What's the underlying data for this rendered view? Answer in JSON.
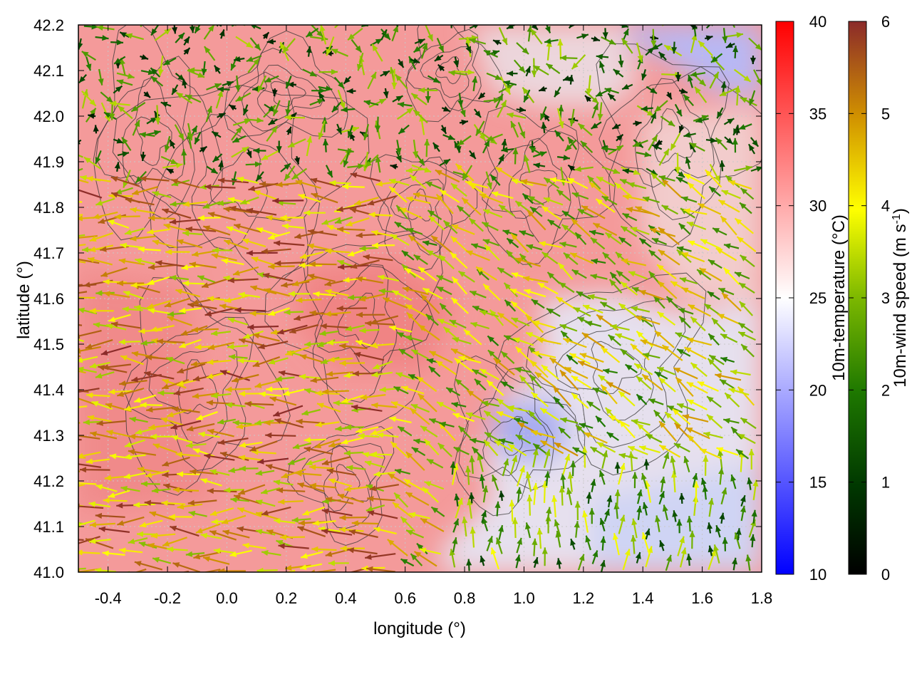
{
  "chart_data": {
    "type": "heatmap",
    "title": "",
    "xlabel": "longitude (°)",
    "ylabel": "latitude (°)",
    "xlim": [
      -0.5,
      1.8
    ],
    "ylim": [
      41.0,
      42.2
    ],
    "xticks": [
      -0.4,
      -0.2,
      0.0,
      0.2,
      0.4,
      0.6,
      0.8,
      1.0,
      1.2,
      1.4,
      1.6,
      1.8
    ],
    "xtick_labels": [
      "-0.4",
      "-0.2",
      "0.0",
      "0.2",
      "0.4",
      "0.6",
      "0.8",
      "1.0",
      "1.2",
      "1.4",
      "1.6",
      "1.8"
    ],
    "yticks": [
      41.0,
      41.1,
      41.2,
      41.3,
      41.4,
      41.5,
      41.6,
      41.7,
      41.8,
      41.9,
      42.0,
      42.1,
      42.2
    ],
    "ytick_labels": [
      "41.0",
      "41.1",
      "41.2",
      "41.3",
      "41.4",
      "41.5",
      "41.6",
      "41.7",
      "41.8",
      "41.9",
      "42.0",
      "42.1",
      "42.2"
    ],
    "grid": true,
    "temperature_colorbar": {
      "label": "10m-temperature (°C)",
      "range": [
        10,
        40
      ],
      "ticks": [
        10,
        15,
        20,
        25,
        30,
        35,
        40
      ],
      "tick_labels": [
        "10",
        "15",
        "20",
        "25",
        "30",
        "35",
        "40"
      ],
      "colors": [
        "#0000ff",
        "#ffffff",
        "#ff0000"
      ]
    },
    "wind_colorbar": {
      "label_prefix": "10m-wind speed (m s",
      "label_exponent": "-1",
      "label_suffix": ")",
      "range": [
        0,
        6
      ],
      "ticks": [
        0,
        1,
        2,
        3,
        4,
        5,
        6
      ],
      "tick_labels": [
        "0",
        "1",
        "2",
        "3",
        "4",
        "5",
        "6"
      ],
      "colors": [
        "#000000",
        "#005000",
        "#33a000",
        "#a0c800",
        "#ffff00",
        "#d09000",
        "#8b1a1a"
      ]
    },
    "temperature_regions": [
      {
        "name": "warm",
        "approx_temp": 30
      },
      {
        "name": "cool-northeast",
        "approx_temp": 21
      },
      {
        "name": "cool-centre-east",
        "approx_temp": 22
      },
      {
        "name": "cool-southeast",
        "approx_temp": 23
      }
    ],
    "wind_field": {
      "west_sector": {
        "direction": "westward",
        "typical_speed": 4.5
      },
      "central_east_sector": {
        "direction": "north-westward",
        "typical_speed": 3.5
      },
      "southeast_sector": {
        "direction": "northward",
        "typical_speed": 2.5
      },
      "north_sector": {
        "direction": "mixed",
        "typical_speed": 2.0
      }
    }
  }
}
